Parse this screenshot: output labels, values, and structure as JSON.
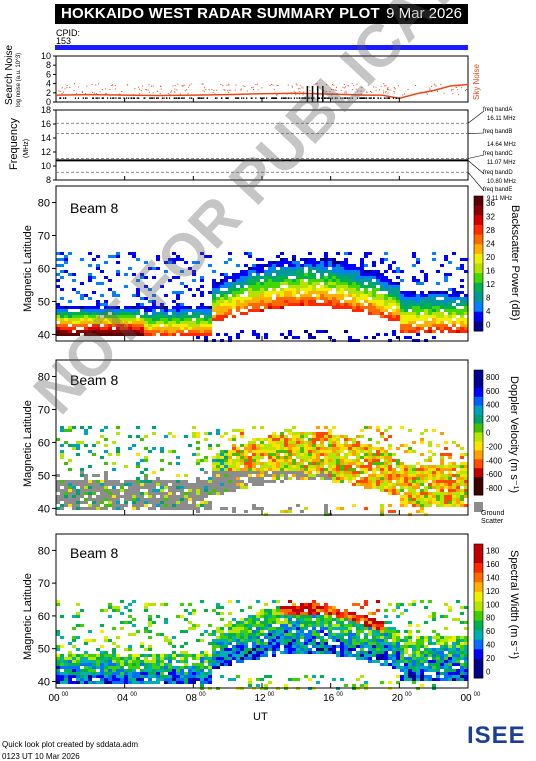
{
  "header": {
    "title": "HOKKAIDO WEST RADAR SUMMARY PLOT",
    "date": "9 Mar 2026"
  },
  "cpid": {
    "label": "CPID:",
    "value": "153"
  },
  "noise_panel": {
    "ylabel_top": "Search Noise",
    "ylabel_bottom": "log noise (a.u. 10^3)",
    "ticks": [
      "10",
      "8",
      "6",
      "4",
      "2",
      "0"
    ],
    "right_label": "Sky Noise"
  },
  "freq_panel": {
    "ylabel": "Frequency",
    "unit": "(MHz)",
    "ticks": [
      "18",
      "16",
      "14",
      "12",
      "10",
      "8"
    ],
    "bands": [
      "freq bandA",
      "16.11 MHz",
      "freq bandB",
      "14.64 MHz",
      "freq bandC",
      "11.07 MHz",
      "freq bandD",
      "10.80 MHz",
      "freq bandE",
      "9.11 MHz"
    ]
  },
  "panels": [
    {
      "beam": "Beam  8",
      "ylabel": "Magnetic Latitude",
      "cbar_label": "Backscatter Power (dB)",
      "cbar_ticks": [
        "36",
        "32",
        "28",
        "24",
        "20",
        "16",
        "12",
        "8",
        "4",
        "0"
      ]
    },
    {
      "beam": "Beam  8",
      "ylabel": "Magnetic Latitude",
      "cbar_label": "Doppler Velocity (m s⁻¹)",
      "cbar_ticks": [
        "800",
        "600",
        "400",
        "200",
        "0",
        "-200",
        "-400",
        "-600",
        "-800"
      ],
      "ground_label_1": "Ground",
      "ground_label_2": "Scatter"
    },
    {
      "beam": "Beam  8",
      "ylabel": "Magnetic Latitude",
      "cbar_label": "Spectral Width (m s⁻¹)",
      "cbar_ticks": [
        "180",
        "160",
        "140",
        "120",
        "100",
        "80",
        "60",
        "40",
        "20",
        "0"
      ]
    }
  ],
  "xaxis": {
    "ticks": [
      "00",
      "04",
      "08",
      "12",
      "16",
      "20",
      "00"
    ],
    "tick_sup": "00",
    "label": "UT"
  },
  "footer": {
    "line1": "Quick look plot created by sddata.adm",
    "line2": "0123 UT 10 Mar 2026",
    "logo": "ISEE"
  },
  "watermark": "NOT FOR PUBLICATION",
  "chart_data": [
    {
      "type": "line",
      "title": "Search Noise",
      "ylim": [
        0,
        10
      ],
      "x_label": "UT",
      "series": [
        {
          "name": "Sky Noise",
          "x": [
            0,
            2,
            4,
            6,
            8,
            10,
            12,
            14,
            16,
            18,
            19,
            20,
            21,
            22,
            23,
            24
          ],
          "values": [
            1.5,
            1.6,
            1.5,
            1.4,
            1.5,
            1.6,
            1.8,
            1.9,
            1.7,
            1.5,
            1.5,
            0.8,
            1.8,
            2.5,
            3.5,
            3.8
          ]
        }
      ]
    },
    {
      "type": "line",
      "title": "Frequency",
      "ylim": [
        8,
        18
      ],
      "series": [
        {
          "values": [
            10.8,
            10.8,
            10.8,
            10.8,
            10.8,
            10.8
          ]
        }
      ],
      "bands_mhz": [
        16.11,
        14.64,
        11.07,
        10.8,
        9.11
      ]
    },
    {
      "type": "heatmap",
      "title": "Backscatter Power",
      "ylim": [
        38,
        85
      ],
      "xlim": [
        0,
        24
      ],
      "clim": [
        0,
        40
      ]
    },
    {
      "type": "heatmap",
      "title": "Doppler Velocity",
      "ylim": [
        38,
        85
      ],
      "xlim": [
        0,
        24
      ],
      "clim": [
        -900,
        900
      ]
    },
    {
      "type": "heatmap",
      "title": "Spectral Width",
      "ylim": [
        38,
        85
      ],
      "xlim": [
        0,
        24
      ],
      "clim": [
        0,
        200
      ]
    }
  ]
}
